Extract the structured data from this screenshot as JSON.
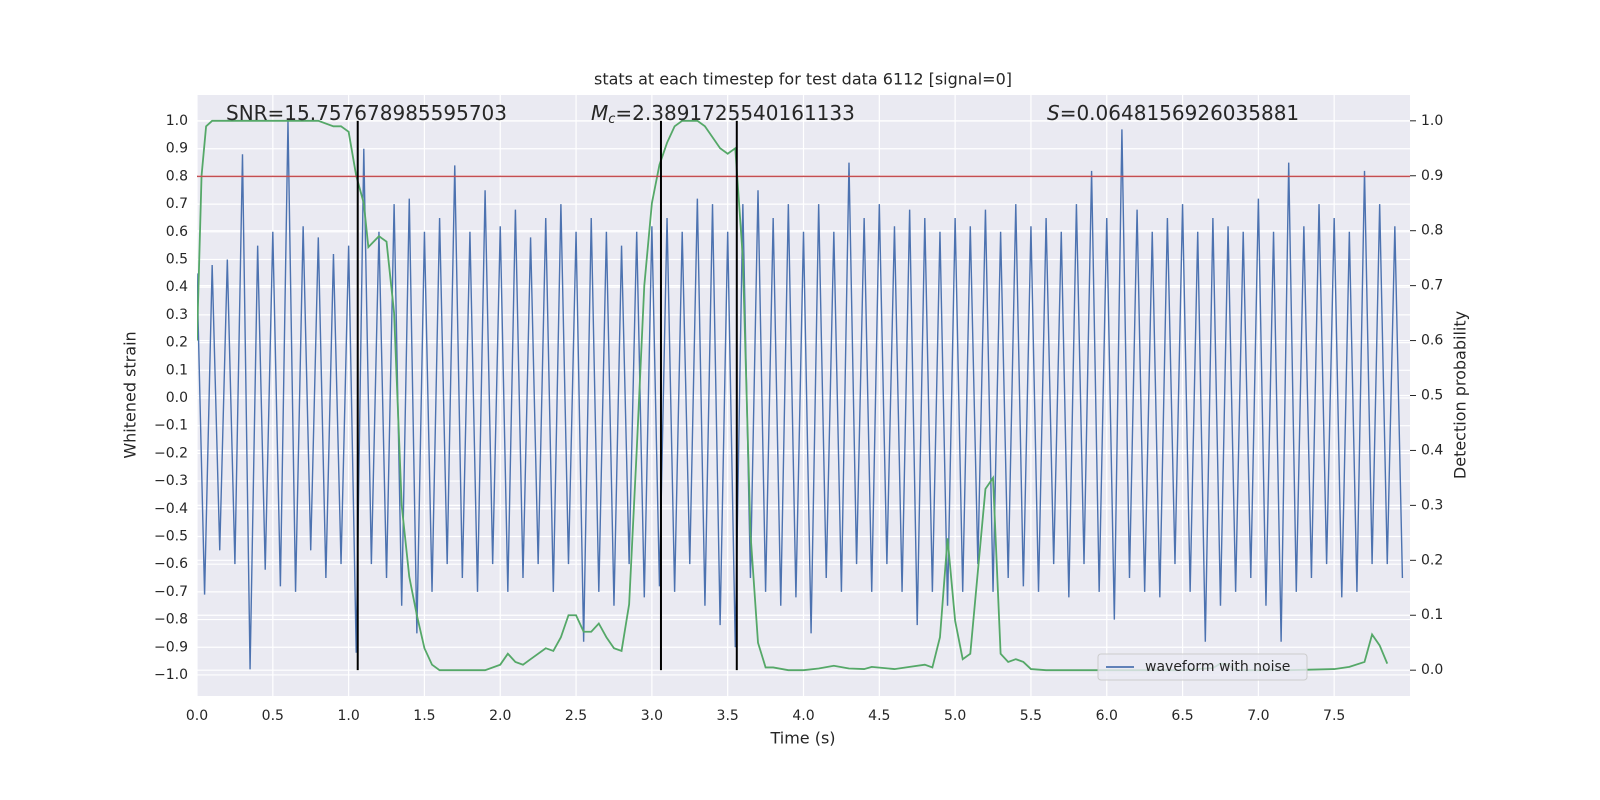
{
  "chart_data": {
    "type": "line",
    "title": "stats at each timestep for test data 6112 [signal=0]",
    "xlabel": "Time (s)",
    "ylabel": "Whitened strain",
    "y2label": "Detection probability",
    "xlim": [
      0,
      8
    ],
    "ylim": [
      -1.076,
      1.094
    ],
    "y2lim": [
      -0.047,
      1.047
    ],
    "grid": true,
    "legend": "lower right",
    "xticks": [
      {
        "value": 0,
        "label": "0.0"
      },
      0.5,
      {
        "value": 1,
        "label": "1.0"
      },
      1.5,
      {
        "value": 2,
        "label": "2.0"
      },
      2.5,
      {
        "value": 3,
        "label": "3.0"
      },
      3.5,
      {
        "value": 4,
        "label": "4.0"
      },
      4.5,
      {
        "value": 5,
        "label": "5.0"
      },
      5.5,
      {
        "value": 6,
        "label": "6.0"
      },
      6.5,
      {
        "value": 7,
        "label": "7.0"
      },
      7.5
    ],
    "yticks": [
      {
        "value": -1,
        "label": "−1.0"
      },
      {
        "value": -0.9,
        "label": "−0.9"
      },
      {
        "value": -0.8,
        "label": "−0.8"
      },
      {
        "value": -0.7,
        "label": "−0.7"
      },
      {
        "value": -0.6,
        "label": "−0.6"
      },
      {
        "value": -0.5,
        "label": "−0.5"
      },
      {
        "value": -0.4,
        "label": "−0.4"
      },
      {
        "value": -0.3,
        "label": "−0.3"
      },
      {
        "value": -0.2,
        "label": "−0.2"
      },
      {
        "value": -0.1,
        "label": "−0.1"
      },
      {
        "value": 0,
        "label": "0.0"
      },
      0.1,
      0.2,
      0.3,
      0.4,
      0.5,
      0.6,
      0.7,
      0.8,
      0.9,
      {
        "value": 1,
        "label": "1.0"
      }
    ],
    "y2ticks": [
      {
        "value": 0,
        "label": "0.0"
      },
      0.1,
      0.2,
      0.3,
      0.4,
      0.5,
      0.6,
      0.7,
      0.8,
      0.9,
      {
        "value": 1,
        "label": "1.0"
      }
    ],
    "series": [
      {
        "name": "waveform with noise",
        "color": "#4c72b0",
        "x": [
          0,
          0.05,
          0.1,
          0.15,
          0.2,
          0.25,
          0.3,
          0.35,
          0.4,
          0.45,
          0.5,
          0.55,
          0.6,
          0.65,
          0.7,
          0.75,
          0.8,
          0.85,
          0.9,
          0.95,
          1,
          1.05,
          1.1,
          1.15,
          1.2,
          1.25,
          1.3,
          1.35,
          1.4,
          1.45,
          1.5,
          1.55,
          1.6,
          1.65,
          1.7,
          1.75,
          1.8,
          1.85,
          1.9,
          1.95,
          2,
          2.05,
          2.1,
          2.15,
          2.2,
          2.25,
          2.3,
          2.35,
          2.4,
          2.45,
          2.5,
          2.55,
          2.6,
          2.65,
          2.7,
          2.75,
          2.8,
          2.85,
          2.9,
          2.95,
          3,
          3.05,
          3.1,
          3.15,
          3.2,
          3.25,
          3.3,
          3.35,
          3.4,
          3.45,
          3.5,
          3.55,
          3.6,
          3.65,
          3.7,
          3.75,
          3.8,
          3.85,
          3.9,
          3.95,
          4,
          4.05,
          4.1,
          4.15,
          4.2,
          4.25,
          4.3,
          4.35,
          4.4,
          4.45,
          4.5,
          4.55,
          4.6,
          4.65,
          4.7,
          4.75,
          4.8,
          4.85,
          4.9,
          4.95,
          5,
          5.05,
          5.1,
          5.15,
          5.2,
          5.25,
          5.3,
          5.35,
          5.4,
          5.45,
          5.5,
          5.55,
          5.6,
          5.65,
          5.7,
          5.75,
          5.8,
          5.85,
          5.9,
          5.95,
          6,
          6.05,
          6.1,
          6.15,
          6.2,
          6.25,
          6.3,
          6.35,
          6.4,
          6.45,
          6.5,
          6.55,
          6.6,
          6.65,
          6.7,
          6.75,
          6.8,
          6.85,
          6.9,
          6.95,
          7,
          7.05,
          7.1,
          7.15,
          7.2,
          7.25,
          7.3,
          7.35,
          7.4,
          7.45,
          7.5,
          7.55,
          7.6,
          7.65,
          7.7,
          7.75,
          7.8,
          7.85,
          7.9,
          7.95
        ],
        "values": [
          0.45,
          -0.71,
          0.48,
          -0.55,
          0.5,
          -0.6,
          0.88,
          -0.98,
          0.55,
          -0.62,
          0.6,
          -0.68,
          1.0,
          -0.7,
          0.62,
          -0.55,
          0.58,
          -0.65,
          0.52,
          -0.6,
          0.55,
          -0.92,
          0.9,
          -0.6,
          0.6,
          -0.65,
          0.7,
          -0.75,
          0.72,
          -0.85,
          0.6,
          -0.7,
          0.65,
          -0.6,
          0.84,
          -0.65,
          0.6,
          -0.7,
          0.75,
          -0.6,
          0.62,
          -0.7,
          0.68,
          -0.65,
          0.58,
          -0.6,
          0.65,
          -0.7,
          0.7,
          -0.6,
          0.6,
          -0.88,
          0.65,
          -0.7,
          0.6,
          -0.75,
          0.55,
          -0.6,
          0.6,
          -0.72,
          0.62,
          -0.68,
          0.65,
          -0.7,
          0.6,
          -0.6,
          0.72,
          -0.75,
          0.7,
          -0.82,
          0.6,
          -0.9,
          0.7,
          -0.65,
          0.75,
          -0.7,
          0.65,
          -0.75,
          0.7,
          -0.72,
          0.6,
          -0.85,
          0.7,
          -0.65,
          0.6,
          -0.7,
          0.85,
          -0.6,
          0.65,
          -0.7,
          0.7,
          -0.6,
          0.62,
          -0.7,
          0.68,
          -0.82,
          0.65,
          -0.7,
          0.6,
          -0.75,
          0.65,
          -0.7,
          0.62,
          -0.6,
          0.68,
          -0.7,
          0.6,
          -0.65,
          0.7,
          -0.68,
          0.62,
          -0.7,
          0.65,
          -0.6,
          0.6,
          -0.72,
          0.7,
          -0.6,
          0.82,
          -0.7,
          0.65,
          -0.8,
          0.97,
          -0.65,
          0.68,
          -0.7,
          0.6,
          -0.72,
          0.65,
          -0.6,
          0.7,
          -0.7,
          0.6,
          -0.88,
          0.65,
          -0.75,
          0.62,
          -0.7,
          0.6,
          -0.65,
          0.72,
          -0.75,
          0.6,
          -0.88,
          0.85,
          -0.7,
          0.62,
          -0.65,
          0.7,
          -0.6,
          0.65,
          -0.72,
          0.6,
          -0.7,
          0.82,
          -0.6,
          0.7,
          -0.6,
          0.62,
          -0.65
        ]
      },
      {
        "color": "#55a868",
        "axis": "y2",
        "x": [
          0,
          0.03,
          0.06,
          0.1,
          0.2,
          0.4,
          0.6,
          0.8,
          0.9,
          0.95,
          1,
          1.05,
          1.1,
          1.13,
          1.2,
          1.25,
          1.3,
          1.35,
          1.4,
          1.45,
          1.5,
          1.55,
          1.6,
          1.7,
          1.8,
          1.9,
          2,
          2.05,
          2.1,
          2.15,
          2.2,
          2.3,
          2.35,
          2.4,
          2.45,
          2.5,
          2.55,
          2.6,
          2.65,
          2.7,
          2.75,
          2.8,
          2.85,
          2.9,
          2.95,
          3,
          3.05,
          3.1,
          3.15,
          3.2,
          3.3,
          3.35,
          3.4,
          3.45,
          3.5,
          3.55,
          3.6,
          3.65,
          3.7,
          3.75,
          3.8,
          3.9,
          4,
          4.1,
          4.2,
          4.3,
          4.4,
          4.45,
          4.6,
          4.7,
          4.8,
          4.85,
          4.9,
          4.95,
          5,
          5.05,
          5.1,
          5.15,
          5.2,
          5.25,
          5.3,
          5.35,
          5.4,
          5.45,
          5.5,
          5.6,
          6,
          6.5,
          6.7,
          6.75,
          6.8,
          6.85,
          7.2,
          7.5,
          7.6,
          7.7,
          7.75,
          7.8,
          7.85
        ],
        "values": [
          0.6,
          0.9,
          0.99,
          1.0,
          1.0,
          1.0,
          1.0,
          1.0,
          0.99,
          0.99,
          0.98,
          0.9,
          0.85,
          0.77,
          0.79,
          0.78,
          0.65,
          0.3,
          0.17,
          0.1,
          0.04,
          0.01,
          0.0,
          0.0,
          0.0,
          0.0,
          0.01,
          0.03,
          0.015,
          0.01,
          0.02,
          0.04,
          0.035,
          0.06,
          0.1,
          0.1,
          0.07,
          0.07,
          0.085,
          0.06,
          0.04,
          0.035,
          0.12,
          0.4,
          0.7,
          0.85,
          0.92,
          0.96,
          0.99,
          1.0,
          1.0,
          0.99,
          0.97,
          0.95,
          0.94,
          0.95,
          0.75,
          0.25,
          0.05,
          0.005,
          0.005,
          0.0,
          0.0,
          0.003,
          0.008,
          0.003,
          0.002,
          0.006,
          0.002,
          0.006,
          0.01,
          0.005,
          0.06,
          0.24,
          0.09,
          0.02,
          0.03,
          0.18,
          0.33,
          0.35,
          0.03,
          0.015,
          0.02,
          0.015,
          0.002,
          0.0,
          0.0,
          0.0,
          0.004,
          0.012,
          0.01,
          0.0,
          0.0,
          0.002,
          0.006,
          0.015,
          0.065,
          0.045,
          0.012
        ]
      }
    ],
    "hlines": [
      {
        "y": 0.8,
        "color": "#c44e52"
      }
    ],
    "vlines": [
      {
        "x": 1.06,
        "ymin": 0,
        "ymax": 1,
        "axis": "y2",
        "color": "#000000"
      },
      {
        "x": 3.06,
        "ymin": 0,
        "ymax": 1,
        "axis": "y2",
        "color": "#000000"
      },
      {
        "x": 3.56,
        "ymin": 0,
        "ymax": 1,
        "axis": "y2",
        "color": "#000000"
      }
    ],
    "annotations": [
      {
        "text": "SNR=15.757678985595703"
      },
      {
        "symbol": "M",
        "subscript": "c",
        "text": "=2.3891725540161133"
      },
      {
        "symbol": "S",
        "text": "=0.0648156926035881"
      }
    ]
  }
}
